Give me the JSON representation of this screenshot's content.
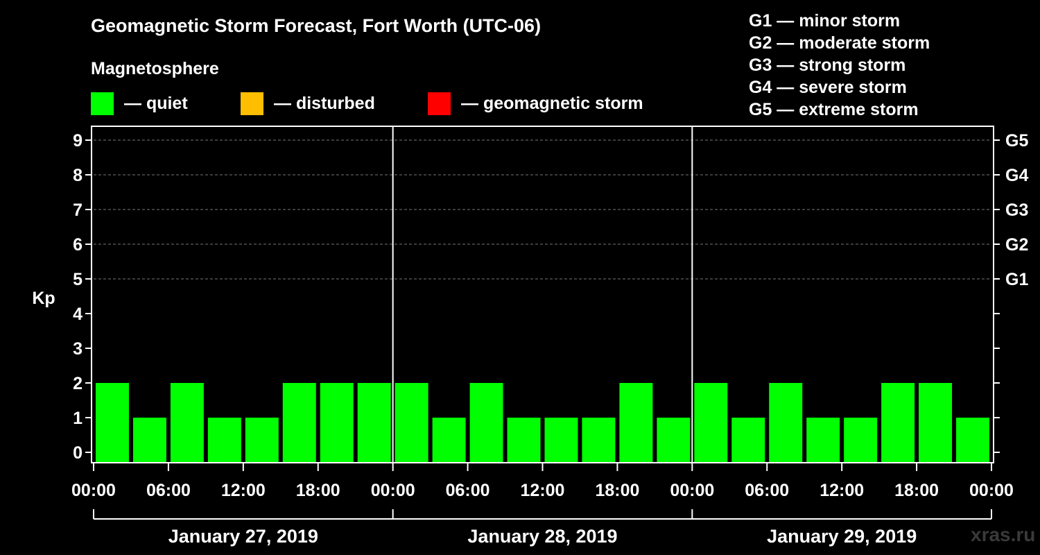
{
  "title": "Geomagnetic Storm Forecast, Fort Worth (UTC-06)",
  "legend": {
    "heading": "Magnetosphere",
    "items": [
      {
        "label": "— quiet",
        "color": "#00ff00"
      },
      {
        "label": "— disturbed",
        "color": "#ffbf00"
      },
      {
        "label": "— geomagnetic storm",
        "color": "#ff0000"
      }
    ]
  },
  "g_scale": [
    "G1 — minor storm",
    "G2 — moderate storm",
    "G3 — strong storm",
    "G4 — severe storm",
    "G5 — extreme storm"
  ],
  "watermark": "xras.ru",
  "chart_data": {
    "type": "bar",
    "title": "Geomagnetic Storm Forecast, Fort Worth (UTC-06)",
    "ylabel": "Kp",
    "ylim": [
      0,
      9
    ],
    "yticks": [
      "0",
      "1",
      "2",
      "3",
      "4",
      "5",
      "6",
      "7",
      "8",
      "9"
    ],
    "right_axis_labels": [
      {
        "kp": 5,
        "label": "G1"
      },
      {
        "kp": 6,
        "label": "G2"
      },
      {
        "kp": 7,
        "label": "G3"
      },
      {
        "kp": 8,
        "label": "G4"
      },
      {
        "kp": 9,
        "label": "G5"
      }
    ],
    "xtick_labels": [
      "00:00",
      "06:00",
      "12:00",
      "18:00",
      "00:00",
      "06:00",
      "12:00",
      "18:00",
      "00:00",
      "06:00",
      "12:00",
      "18:00",
      "00:00"
    ],
    "days": [
      "January 27, 2019",
      "January 28, 2019",
      "January 29, 2019"
    ],
    "bar_hours": 3,
    "values": [
      2,
      1,
      2,
      1,
      1,
      2,
      2,
      2,
      2,
      1,
      2,
      1,
      1,
      1,
      2,
      1,
      2,
      1,
      2,
      1,
      1,
      2,
      2,
      1
    ],
    "status": [
      "quiet",
      "quiet",
      "quiet",
      "quiet",
      "quiet",
      "quiet",
      "quiet",
      "quiet",
      "quiet",
      "quiet",
      "quiet",
      "quiet",
      "quiet",
      "quiet",
      "quiet",
      "quiet",
      "quiet",
      "quiet",
      "quiet",
      "quiet",
      "quiet",
      "quiet",
      "quiet",
      "quiet"
    ],
    "grid": "dashed horizontal at Kp 5-9"
  }
}
